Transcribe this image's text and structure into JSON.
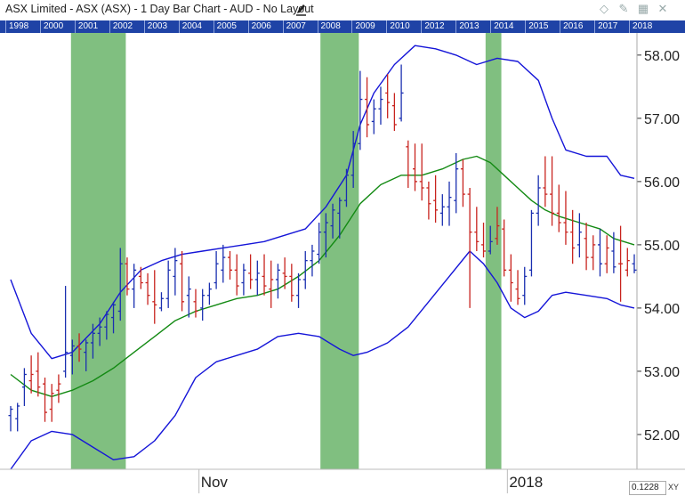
{
  "window": {
    "title": "ASX Limited - ASX (ASX) - 1 Day Bar Chart - AUD - No Layout",
    "icons": [
      "pencil-icon",
      "diamond-icon",
      "pin-icon",
      "grid-icon",
      "close-icon"
    ]
  },
  "year_strip": [
    "1998",
    "2000",
    "2001",
    "2002",
    "2003",
    "2004",
    "2005",
    "2006",
    "2007",
    "2008",
    "2009",
    "2010",
    "2012",
    "2013",
    "2014",
    "2015",
    "2016",
    "2017",
    "2018"
  ],
  "readout": {
    "value": "0.1228",
    "xy_label": "XY"
  },
  "colors": {
    "up_bar": "#1a2fb0",
    "down_bar": "#c8231e",
    "bands": "#1515d8",
    "moving_average": "#138a13",
    "highlight": "#4fa64f",
    "year_strip": "#1f43a6"
  },
  "chart_data": {
    "type": "bar",
    "subtype": "ohlc",
    "title": "",
    "xlabel": "",
    "ylabel": "",
    "x_ticks": [
      {
        "label": "Nov",
        "bar": 28
      },
      {
        "label": "2018",
        "bar": 73
      }
    ],
    "yticks": [
      "52.00",
      "53.00",
      "54.00",
      "55.00",
      "56.00",
      "57.00",
      "58.00"
    ],
    "ylim": [
      51.45,
      58.35
    ],
    "bar_count": 92,
    "grid": false,
    "ohlc": [
      [
        52.3,
        52.45,
        52.05,
        52.4
      ],
      [
        52.25,
        52.5,
        52.05,
        52.45
      ],
      [
        52.75,
        53.05,
        52.45,
        52.95
      ],
      [
        52.85,
        53.25,
        52.65,
        52.95
      ],
      [
        53.0,
        53.3,
        52.6,
        52.75
      ],
      [
        52.8,
        52.9,
        52.2,
        52.35
      ],
      [
        52.4,
        52.8,
        52.2,
        52.65
      ],
      [
        52.7,
        52.95,
        52.5,
        52.8
      ],
      [
        53.0,
        54.35,
        52.9,
        53.3
      ],
      [
        53.25,
        53.5,
        52.95,
        53.4
      ],
      [
        53.4,
        53.6,
        53.15,
        53.35
      ],
      [
        53.3,
        53.5,
        53.0,
        53.45
      ],
      [
        53.45,
        53.75,
        53.2,
        53.6
      ],
      [
        53.6,
        53.85,
        53.4,
        53.7
      ],
      [
        53.7,
        53.95,
        53.5,
        53.9
      ],
      [
        53.85,
        54.1,
        53.6,
        54.05
      ],
      [
        53.95,
        54.95,
        53.8,
        54.7
      ],
      [
        54.7,
        54.8,
        54.2,
        54.3
      ],
      [
        54.3,
        54.7,
        54.0,
        54.6
      ],
      [
        54.5,
        54.65,
        54.3,
        54.4
      ],
      [
        54.4,
        54.55,
        54.05,
        54.2
      ],
      [
        54.1,
        54.6,
        53.75,
        54.05
      ],
      [
        54.0,
        54.25,
        53.95,
        54.15
      ],
      [
        54.15,
        54.75,
        54.0,
        54.6
      ],
      [
        54.5,
        54.95,
        54.2,
        54.75
      ],
      [
        54.7,
        54.9,
        53.95,
        54.1
      ],
      [
        54.2,
        54.5,
        53.85,
        54.3
      ],
      [
        54.1,
        54.3,
        53.85,
        53.95
      ],
      [
        54.0,
        54.3,
        53.8,
        54.2
      ],
      [
        54.2,
        54.4,
        54.05,
        54.3
      ],
      [
        54.4,
        54.9,
        54.3,
        54.7
      ],
      [
        54.6,
        55.0,
        54.4,
        54.8
      ],
      [
        54.8,
        54.9,
        54.45,
        54.6
      ],
      [
        54.6,
        54.85,
        54.2,
        54.35
      ],
      [
        54.4,
        54.7,
        54.2,
        54.6
      ],
      [
        54.55,
        54.85,
        54.3,
        54.45
      ],
      [
        54.45,
        54.75,
        54.2,
        54.55
      ],
      [
        54.5,
        54.85,
        54.2,
        54.35
      ],
      [
        54.3,
        54.75,
        54.0,
        54.45
      ],
      [
        54.45,
        54.7,
        54.15,
        54.6
      ],
      [
        54.55,
        54.8,
        54.3,
        54.5
      ],
      [
        54.5,
        54.7,
        54.1,
        54.2
      ],
      [
        54.2,
        54.55,
        54.0,
        54.45
      ],
      [
        54.45,
        54.9,
        54.3,
        54.75
      ],
      [
        54.75,
        55.0,
        54.5,
        54.9
      ],
      [
        54.85,
        55.35,
        54.7,
        55.2
      ],
      [
        55.2,
        55.5,
        54.8,
        55.35
      ],
      [
        55.3,
        55.65,
        55.1,
        55.55
      ],
      [
        55.5,
        55.75,
        55.1,
        55.7
      ],
      [
        55.7,
        56.2,
        55.6,
        56.1
      ],
      [
        56.1,
        56.8,
        55.9,
        56.6
      ],
      [
        56.6,
        57.75,
        56.5,
        57.3
      ],
      [
        57.3,
        57.65,
        56.7,
        56.9
      ],
      [
        56.95,
        57.3,
        56.75,
        57.15
      ],
      [
        57.15,
        57.5,
        56.9,
        57.3
      ],
      [
        57.4,
        57.7,
        57.0,
        57.25
      ],
      [
        57.2,
        57.4,
        56.8,
        56.9
      ],
      [
        57.0,
        57.85,
        56.95,
        57.4
      ],
      [
        56.55,
        56.65,
        55.9,
        56.1
      ],
      [
        56.2,
        56.6,
        55.85,
        56.0
      ],
      [
        56.0,
        56.6,
        55.7,
        55.9
      ],
      [
        55.9,
        56.0,
        55.4,
        55.65
      ],
      [
        55.7,
        56.1,
        55.35,
        55.55
      ],
      [
        55.5,
        55.8,
        55.3,
        55.6
      ],
      [
        55.6,
        56.0,
        55.3,
        55.75
      ],
      [
        55.7,
        56.45,
        55.5,
        56.2
      ],
      [
        56.2,
        56.35,
        55.6,
        55.8
      ],
      [
        55.8,
        55.9,
        54.0,
        55.2
      ],
      [
        55.2,
        55.6,
        54.9,
        55.05
      ],
      [
        55.0,
        55.35,
        54.8,
        54.9
      ],
      [
        54.9,
        55.3,
        54.85,
        55.05
      ],
      [
        55.1,
        55.6,
        55.0,
        55.3
      ],
      [
        55.25,
        55.4,
        54.5,
        54.6
      ],
      [
        54.6,
        54.85,
        54.1,
        54.4
      ],
      [
        54.3,
        54.6,
        54.05,
        54.15
      ],
      [
        54.2,
        54.65,
        54.05,
        54.5
      ],
      [
        54.6,
        55.55,
        54.5,
        55.5
      ],
      [
        55.5,
        56.1,
        55.3,
        55.9
      ],
      [
        55.9,
        56.4,
        55.6,
        55.8
      ],
      [
        55.8,
        56.4,
        55.3,
        55.5
      ],
      [
        55.5,
        55.95,
        55.2,
        55.35
      ],
      [
        55.35,
        55.85,
        55.0,
        55.2
      ],
      [
        55.2,
        55.55,
        54.7,
        54.95
      ],
      [
        55.0,
        55.5,
        54.8,
        55.2
      ],
      [
        55.1,
        55.35,
        54.6,
        54.8
      ],
      [
        54.8,
        55.15,
        54.6,
        55.0
      ],
      [
        55.0,
        55.25,
        54.5,
        54.7
      ],
      [
        54.7,
        55.15,
        54.55,
        54.95
      ],
      [
        54.9,
        55.2,
        54.55,
        54.65
      ],
      [
        54.7,
        55.3,
        54.1,
        54.7
      ],
      [
        54.6,
        54.95,
        54.5,
        54.75
      ],
      [
        54.7,
        54.85,
        54.55,
        54.6
      ]
    ],
    "bar_direction_note": "",
    "up_bars": [
      0,
      1,
      2,
      8,
      9,
      11,
      12,
      13,
      14,
      15,
      16,
      18,
      22,
      23,
      24,
      26,
      28,
      29,
      30,
      31,
      34,
      36,
      39,
      42,
      43,
      44,
      45,
      46,
      47,
      48,
      49,
      50,
      51,
      53,
      54,
      57,
      63,
      64,
      65,
      70,
      75,
      76,
      77,
      83,
      86,
      88,
      91
    ],
    "upper_band": [
      [
        0,
        54.45
      ],
      [
        3,
        53.6
      ],
      [
        6,
        53.2
      ],
      [
        9,
        53.3
      ],
      [
        13,
        53.75
      ],
      [
        16,
        54.25
      ],
      [
        19,
        54.6
      ],
      [
        22,
        54.75
      ],
      [
        25,
        54.85
      ],
      [
        28,
        54.9
      ],
      [
        31,
        54.95
      ],
      [
        34,
        55.0
      ],
      [
        37,
        55.05
      ],
      [
        40,
        55.15
      ],
      [
        43,
        55.25
      ],
      [
        46,
        55.6
      ],
      [
        49,
        56.1
      ],
      [
        51,
        56.9
      ],
      [
        53,
        57.4
      ],
      [
        56,
        57.85
      ],
      [
        59,
        58.15
      ],
      [
        62,
        58.1
      ],
      [
        65,
        58.0
      ],
      [
        68,
        57.85
      ],
      [
        71,
        57.95
      ],
      [
        74,
        57.9
      ],
      [
        77,
        57.6
      ],
      [
        79,
        57.0
      ],
      [
        81,
        56.5
      ],
      [
        84,
        56.4
      ],
      [
        87,
        56.4
      ],
      [
        89,
        56.1
      ],
      [
        91,
        56.05
      ]
    ],
    "middle_ma": [
      [
        0,
        52.95
      ],
      [
        3,
        52.7
      ],
      [
        6,
        52.6
      ],
      [
        9,
        52.7
      ],
      [
        12,
        52.85
      ],
      [
        15,
        53.05
      ],
      [
        18,
        53.3
      ],
      [
        21,
        53.55
      ],
      [
        24,
        53.8
      ],
      [
        27,
        53.95
      ],
      [
        30,
        54.05
      ],
      [
        33,
        54.15
      ],
      [
        36,
        54.2
      ],
      [
        39,
        54.3
      ],
      [
        42,
        54.5
      ],
      [
        45,
        54.75
      ],
      [
        48,
        55.15
      ],
      [
        51,
        55.65
      ],
      [
        54,
        55.95
      ],
      [
        57,
        56.1
      ],
      [
        60,
        56.1
      ],
      [
        63,
        56.2
      ],
      [
        66,
        56.35
      ],
      [
        68,
        56.4
      ],
      [
        70,
        56.3
      ],
      [
        72,
        56.1
      ],
      [
        74,
        55.9
      ],
      [
        76,
        55.7
      ],
      [
        78,
        55.55
      ],
      [
        80,
        55.45
      ],
      [
        83,
        55.35
      ],
      [
        86,
        55.25
      ],
      [
        88,
        55.1
      ],
      [
        91,
        55.0
      ]
    ],
    "lower_band": [
      [
        0,
        51.45
      ],
      [
        3,
        51.9
      ],
      [
        6,
        52.05
      ],
      [
        9,
        52.0
      ],
      [
        12,
        51.8
      ],
      [
        15,
        51.6
      ],
      [
        18,
        51.65
      ],
      [
        21,
        51.9
      ],
      [
        24,
        52.3
      ],
      [
        27,
        52.9
      ],
      [
        30,
        53.15
      ],
      [
        33,
        53.25
      ],
      [
        36,
        53.35
      ],
      [
        39,
        53.55
      ],
      [
        42,
        53.6
      ],
      [
        45,
        53.55
      ],
      [
        48,
        53.35
      ],
      [
        50,
        53.25
      ],
      [
        52,
        53.3
      ],
      [
        55,
        53.45
      ],
      [
        58,
        53.7
      ],
      [
        61,
        54.1
      ],
      [
        64,
        54.5
      ],
      [
        67,
        54.9
      ],
      [
        69,
        54.7
      ],
      [
        71,
        54.4
      ],
      [
        73,
        54.0
      ],
      [
        75,
        53.85
      ],
      [
        77,
        53.95
      ],
      [
        79,
        54.2
      ],
      [
        81,
        54.25
      ],
      [
        84,
        54.2
      ],
      [
        87,
        54.15
      ],
      [
        89,
        54.05
      ],
      [
        91,
        54.0
      ]
    ],
    "highlight_regions": [
      [
        8.8,
        16.8
      ],
      [
        45.2,
        50.8
      ],
      [
        69.3,
        71.6
      ]
    ]
  }
}
